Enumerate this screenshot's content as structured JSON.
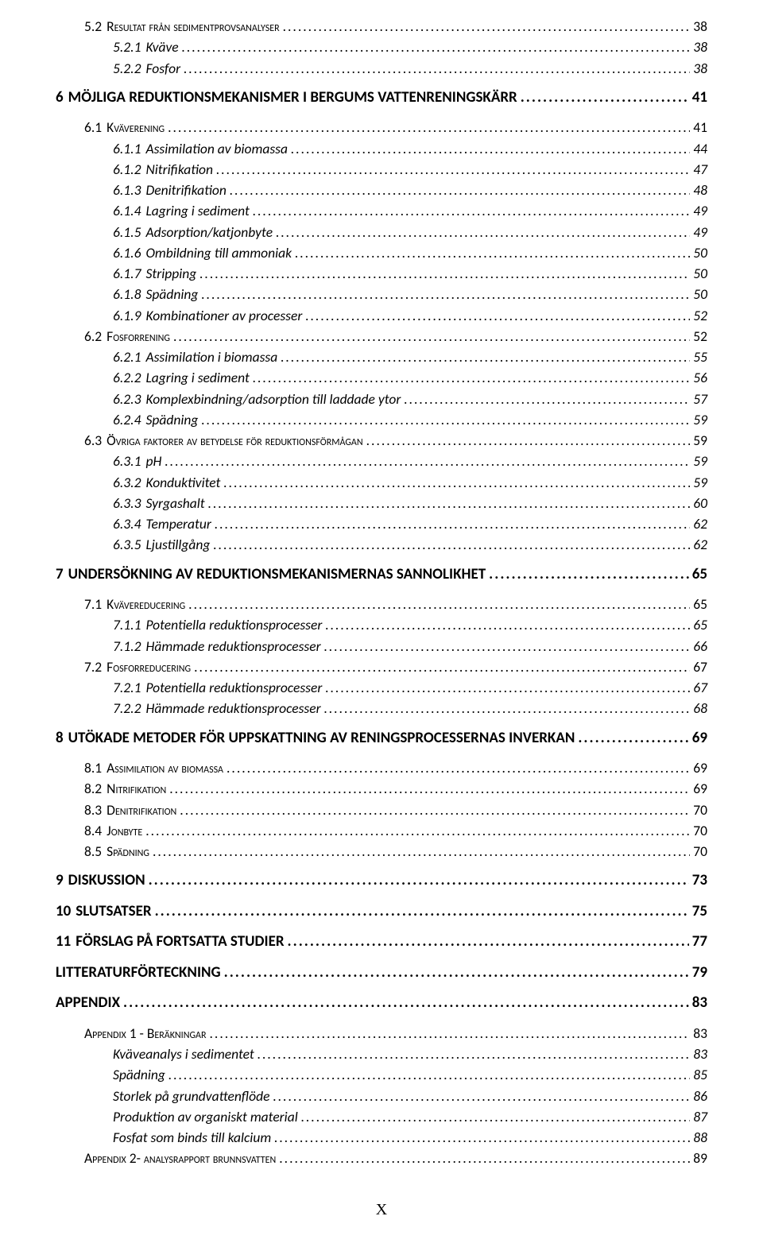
{
  "footer": "X",
  "toc": [
    {
      "level": 1,
      "label": "5.2",
      "title": "Resultat från sedimentprovsanalyser",
      "page": "38",
      "smallcaps": true,
      "gap": false
    },
    {
      "level": 2,
      "label": "5.2.1",
      "title": "Kväve",
      "page": "38",
      "gap": false
    },
    {
      "level": 2,
      "label": "5.2.2",
      "title": "Fosfor",
      "page": "38",
      "gap": false
    },
    {
      "level": 0,
      "label": "6",
      "title": "MÖJLIGA REDUKTIONSMEKANISMER I BERGUMS VATTENRENINGSKÄRR",
      "page": "41",
      "gap": true
    },
    {
      "level": 1,
      "label": "6.1",
      "title": "Kväverening",
      "page": "41",
      "smallcaps": true,
      "gap": true
    },
    {
      "level": 2,
      "label": "6.1.1",
      "title": "Assimilation av biomassa",
      "page": "44",
      "gap": false
    },
    {
      "level": 2,
      "label": "6.1.2",
      "title": "Nitrifikation",
      "page": "47",
      "gap": false
    },
    {
      "level": 2,
      "label": "6.1.3",
      "title": "Denitrifikation",
      "page": "48",
      "gap": false
    },
    {
      "level": 2,
      "label": "6.1.4",
      "title": "Lagring i sediment",
      "page": "49",
      "gap": false
    },
    {
      "level": 2,
      "label": "6.1.5",
      "title": "Adsorption/katjonbyte",
      "page": "49",
      "gap": false
    },
    {
      "level": 2,
      "label": "6.1.6",
      "title": "Ombildning till ammoniak",
      "page": "50",
      "gap": false
    },
    {
      "level": 2,
      "label": "6.1.7",
      "title": "Stripping",
      "page": "50",
      "gap": false
    },
    {
      "level": 2,
      "label": "6.1.8",
      "title": "Spädning",
      "page": "50",
      "gap": false
    },
    {
      "level": 2,
      "label": "6.1.9",
      "title": "Kombinationer av processer",
      "page": "52",
      "gap": false
    },
    {
      "level": 1,
      "label": "6.2",
      "title": "Fosforrening",
      "page": "52",
      "smallcaps": true,
      "gap": false
    },
    {
      "level": 2,
      "label": "6.2.1",
      "title": "Assimilation i biomassa",
      "page": "55",
      "gap": false
    },
    {
      "level": 2,
      "label": "6.2.2",
      "title": "Lagring i sediment",
      "page": "56",
      "gap": false
    },
    {
      "level": 2,
      "label": "6.2.3",
      "title": "Komplexbindning/adsorption till laddade ytor",
      "page": "57",
      "gap": false
    },
    {
      "level": 2,
      "label": "6.2.4",
      "title": "Spädning",
      "page": "59",
      "gap": false
    },
    {
      "level": 1,
      "label": "6.3",
      "title": "Övriga faktorer av betydelse för reduktionsförmågan",
      "page": "59",
      "smallcaps": true,
      "gap": false
    },
    {
      "level": 2,
      "label": "6.3.1",
      "title": "pH",
      "page": "59",
      "gap": false
    },
    {
      "level": 2,
      "label": "6.3.2",
      "title": "Konduktivitet",
      "page": "59",
      "gap": false
    },
    {
      "level": 2,
      "label": "6.3.3",
      "title": "Syrgashalt",
      "page": "60",
      "gap": false
    },
    {
      "level": 2,
      "label": "6.3.4",
      "title": "Temperatur",
      "page": "62",
      "gap": false
    },
    {
      "level": 2,
      "label": "6.3.5",
      "title": "Ljustillgång",
      "page": "62",
      "gap": false
    },
    {
      "level": 0,
      "label": "7",
      "title": "UNDERSÖKNING AV REDUKTIONSMEKANISMERNAS SANNOLIKHET",
      "page": "65",
      "gap": true
    },
    {
      "level": 1,
      "label": "7.1",
      "title": "Kvävereducering",
      "page": "65",
      "smallcaps": true,
      "gap": true
    },
    {
      "level": 2,
      "label": "7.1.1",
      "title": "Potentiella reduktionsprocesser",
      "page": "65",
      "gap": false
    },
    {
      "level": 2,
      "label": "7.1.2",
      "title": "Hämmade reduktionsprocesser",
      "page": "66",
      "gap": false
    },
    {
      "level": 1,
      "label": "7.2",
      "title": "Fosforreducering",
      "page": "67",
      "smallcaps": true,
      "gap": false
    },
    {
      "level": 2,
      "label": "7.2.1",
      "title": "Potentiella reduktionsprocesser",
      "page": "67",
      "gap": false
    },
    {
      "level": 2,
      "label": "7.2.2",
      "title": "Hämmade reduktionsprocesser",
      "page": "68",
      "gap": false
    },
    {
      "level": 0,
      "label": "8",
      "title": "UTÖKADE METODER FÖR UPPSKATTNING AV RENINGSPROCESSERNAS INVERKAN",
      "page": "69",
      "gap": true
    },
    {
      "level": 1,
      "label": "8.1",
      "title": "Assimilation av biomassa",
      "page": "69",
      "smallcaps": true,
      "gap": true
    },
    {
      "level": 1,
      "label": "8.2",
      "title": "Nitrifikation",
      "page": "69",
      "smallcaps": true,
      "gap": false
    },
    {
      "level": 1,
      "label": "8.3",
      "title": "Denitrifikation",
      "page": "70",
      "smallcaps": true,
      "gap": false
    },
    {
      "level": 1,
      "label": "8.4",
      "title": "Jonbyte",
      "page": "70",
      "smallcaps": true,
      "gap": false
    },
    {
      "level": 1,
      "label": "8.5",
      "title": "Spädning",
      "page": "70",
      "smallcaps": true,
      "gap": false
    },
    {
      "level": 0,
      "label": "9",
      "title": "DISKUSSION",
      "page": "73",
      "gap": true
    },
    {
      "level": 0,
      "label": "10",
      "title": "SLUTSATSER",
      "page": "75",
      "gap": true
    },
    {
      "level": 0,
      "label": "11",
      "title": "FÖRSLAG PÅ FORTSATTA STUDIER",
      "page": "77",
      "gap": true
    },
    {
      "level": 0,
      "label": "",
      "title": "LITTERATURFÖRTECKNING",
      "page": "79",
      "gap": true
    },
    {
      "level": 0,
      "label": "",
      "title": "APPENDIX",
      "page": "83",
      "gap": true
    },
    {
      "level": 1,
      "label": "",
      "title": "Appendix 1 - Beräkningar",
      "page": "83",
      "smallcaps": true,
      "gap": true
    },
    {
      "level": 2,
      "label": "",
      "title": "Kväveanalys i sedimentet",
      "page": "83",
      "gap": false
    },
    {
      "level": 2,
      "label": "",
      "title": "Spädning",
      "page": "85",
      "gap": false
    },
    {
      "level": 2,
      "label": "",
      "title": "Storlek på grundvattenflöde",
      "page": "86",
      "gap": false
    },
    {
      "level": 2,
      "label": "",
      "title": "Produktion av organiskt material",
      "page": "87",
      "gap": false
    },
    {
      "level": 2,
      "label": "",
      "title": "Fosfat som binds till kalcium",
      "page": "88",
      "gap": false
    },
    {
      "level": 1,
      "label": "",
      "title": "Appendix 2- analysrapport brunnsvatten",
      "page": "89",
      "smallcaps": true,
      "gap": false
    }
  ]
}
